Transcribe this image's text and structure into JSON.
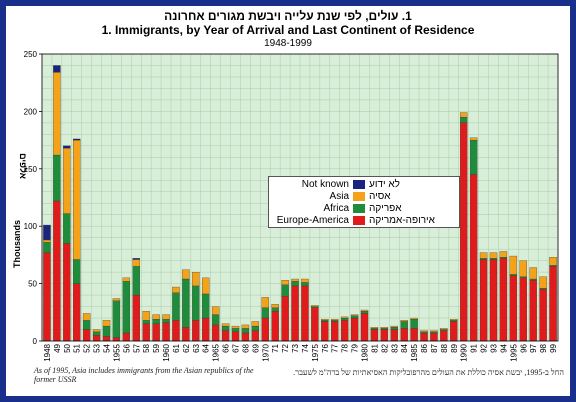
{
  "titles": {
    "hebrew": "1. עולים, לפי שנת עלייה ויבשת מגורים אחרונה",
    "english": "1.  Immigrants, by Year of Arrival and Last Continent of Residence",
    "years_range": "1948-1999"
  },
  "legend": {
    "items": [
      {
        "en": "Not known",
        "he": "לא ידוע",
        "color": "#1a237e"
      },
      {
        "en": "Asia",
        "he": "אסיה",
        "color": "#f5a21b"
      },
      {
        "en": "Africa",
        "he": "אפריקה",
        "color": "#1e8c3a"
      },
      {
        "en": "Europe-America",
        "he": "אירופה-אמריקה",
        "color": "#e01b1b"
      }
    ]
  },
  "notes": {
    "english": "As of 1995, Asia includes immigrants from the Asian republics of the former USSR",
    "hebrew": "החל ב-1995, יבשת אסיה כוללת את העולים מהרפובליקות האסיאתיות של ברה\"מ לשעבר."
  },
  "chart_data": {
    "type": "bar",
    "stacked": true,
    "ylabel": "Thousands",
    "ylabel_he": "אלפים",
    "ylim": [
      0,
      250
    ],
    "yticks": [
      0,
      50,
      100,
      150,
      200,
      250
    ],
    "grid": true,
    "legend_position": "center-right",
    "categories": [
      "1948",
      "49",
      "50",
      "51",
      "52",
      "53",
      "54",
      "55",
      "56",
      "57",
      "58",
      "59",
      "60",
      "61",
      "62",
      "63",
      "64",
      "65",
      "66",
      "67",
      "68",
      "69",
      "70",
      "71",
      "72",
      "73",
      "74",
      "75",
      "76",
      "77",
      "78",
      "79",
      "80",
      "81",
      "82",
      "83",
      "84",
      "85",
      "86",
      "87",
      "88",
      "89",
      "90",
      "91",
      "92",
      "93",
      "94",
      "95",
      "96",
      "97",
      "98",
      "99"
    ],
    "tick_labels": [
      "1948",
      "49",
      "50",
      "51",
      "52",
      "53",
      "54",
      "1955",
      "56",
      "57",
      "58",
      "59",
      "1960",
      "61",
      "62",
      "63",
      "64",
      "1965",
      "66",
      "67",
      "68",
      "69",
      "1970",
      "71",
      "72",
      "73",
      "74",
      "1975",
      "76",
      "77",
      "78",
      "79",
      "1980",
      "81",
      "82",
      "83",
      "84",
      "1985",
      "86",
      "87",
      "88",
      "89",
      "1990",
      "91",
      "92",
      "93",
      "94",
      "1995",
      "96",
      "97",
      "98",
      "99"
    ],
    "series": [
      {
        "name": "Europe-America",
        "values": [
          77,
          122,
          85,
          50,
          10,
          5,
          4,
          3,
          7,
          40,
          15,
          15,
          16,
          18,
          12,
          18,
          20,
          14,
          9,
          8,
          7,
          9,
          20,
          26,
          39,
          48,
          48,
          29,
          17,
          17,
          18,
          20,
          24,
          10,
          10,
          10,
          11,
          11,
          7,
          7,
          9,
          17,
          190,
          145,
          71,
          71,
          72,
          57,
          55,
          53,
          45,
          65
        ]
      },
      {
        "name": "Africa",
        "values": [
          9,
          40,
          26,
          21,
          8,
          3,
          9,
          32,
          45,
          25,
          3,
          4,
          3,
          24,
          42,
          30,
          21,
          9,
          4,
          3,
          4,
          4,
          9,
          3,
          10,
          4,
          3,
          1,
          1,
          1,
          2,
          2,
          2,
          1,
          1,
          2,
          6,
          8,
          1,
          1,
          1,
          1,
          5,
          30,
          1,
          1,
          1,
          1,
          1,
          1,
          1,
          1
        ]
      },
      {
        "name": "Asia",
        "values": [
          2,
          72,
          57,
          104,
          6,
          2,
          5,
          2,
          3,
          6,
          8,
          4,
          4,
          5,
          8,
          12,
          14,
          7,
          2,
          2,
          3,
          4,
          9,
          3,
          4,
          2,
          3,
          1,
          1,
          1,
          1,
          1,
          1,
          1,
          1,
          1,
          1,
          1,
          1,
          1,
          1,
          1,
          4,
          2,
          5,
          5,
          5,
          16,
          14,
          10,
          10,
          7
        ]
      },
      {
        "name": "Not known",
        "values": [
          13,
          6,
          2,
          1,
          0,
          0,
          0,
          0,
          0,
          1,
          0,
          0,
          0,
          0,
          0,
          0,
          0,
          0,
          0,
          0,
          0,
          0,
          0,
          0,
          0,
          0,
          0,
          0,
          0,
          0,
          0,
          0,
          0,
          0,
          0,
          0,
          0,
          0,
          0,
          0,
          0,
          0,
          0,
          0,
          0,
          0,
          0,
          0,
          0,
          0,
          0,
          0
        ]
      }
    ]
  }
}
